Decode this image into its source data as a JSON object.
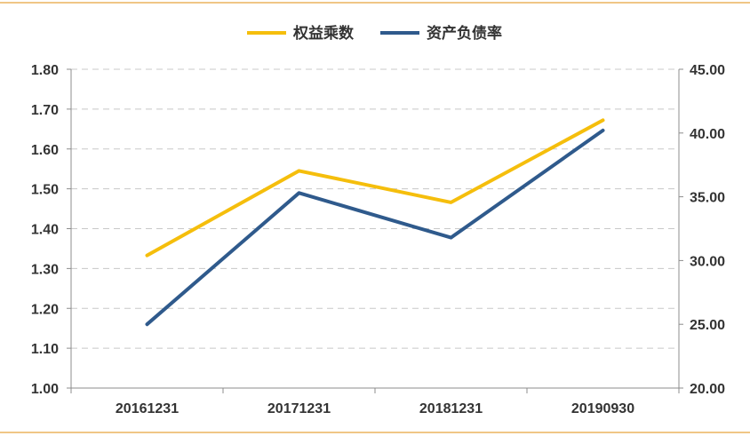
{
  "chart_data": {
    "type": "line",
    "title": "",
    "categories": [
      "20161231",
      "20171231",
      "20181231",
      "20190930"
    ],
    "series": [
      {
        "name": "权益乘数",
        "axis": "left",
        "color": "#F5BE0C",
        "values": [
          1.333,
          1.545,
          1.466,
          1.672
        ]
      },
      {
        "name": "资产负债率",
        "axis": "right",
        "color": "#2F5A8C",
        "values": [
          25.0,
          35.3,
          31.8,
          40.2
        ]
      }
    ],
    "y_left": {
      "min": 1.0,
      "max": 1.8,
      "ticks": [
        "1.00",
        "1.10",
        "1.20",
        "1.30",
        "1.40",
        "1.50",
        "1.60",
        "1.70",
        "1.80"
      ]
    },
    "y_right": {
      "min": 20.0,
      "max": 45.0,
      "ticks": [
        "20.00",
        "25.00",
        "30.00",
        "35.00",
        "40.00",
        "45.00"
      ]
    },
    "grid": true,
    "legend_position": "top-center",
    "frame_color": "#E8A33D"
  }
}
